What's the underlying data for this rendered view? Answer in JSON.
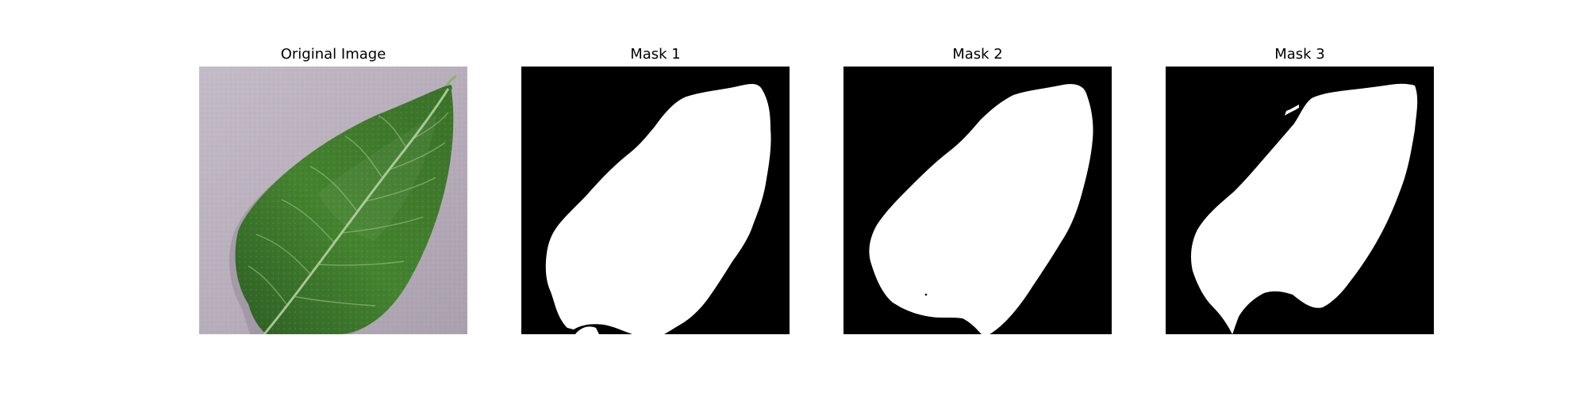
{
  "figure": {
    "panels": [
      {
        "title": "Original Image",
        "kind": "photo",
        "subject": "leaf-photo"
      },
      {
        "title": "Mask 1",
        "kind": "mask",
        "subject": "leaf-mask"
      },
      {
        "title": "Mask 2",
        "kind": "mask",
        "subject": "leaf-mask"
      },
      {
        "title": "Mask 3",
        "kind": "mask",
        "subject": "leaf-mask"
      }
    ],
    "colors": {
      "mask_background": "#000000",
      "mask_foreground": "#ffffff",
      "photo_background": "#b9b0bd",
      "leaf": "#3f7a33"
    }
  }
}
